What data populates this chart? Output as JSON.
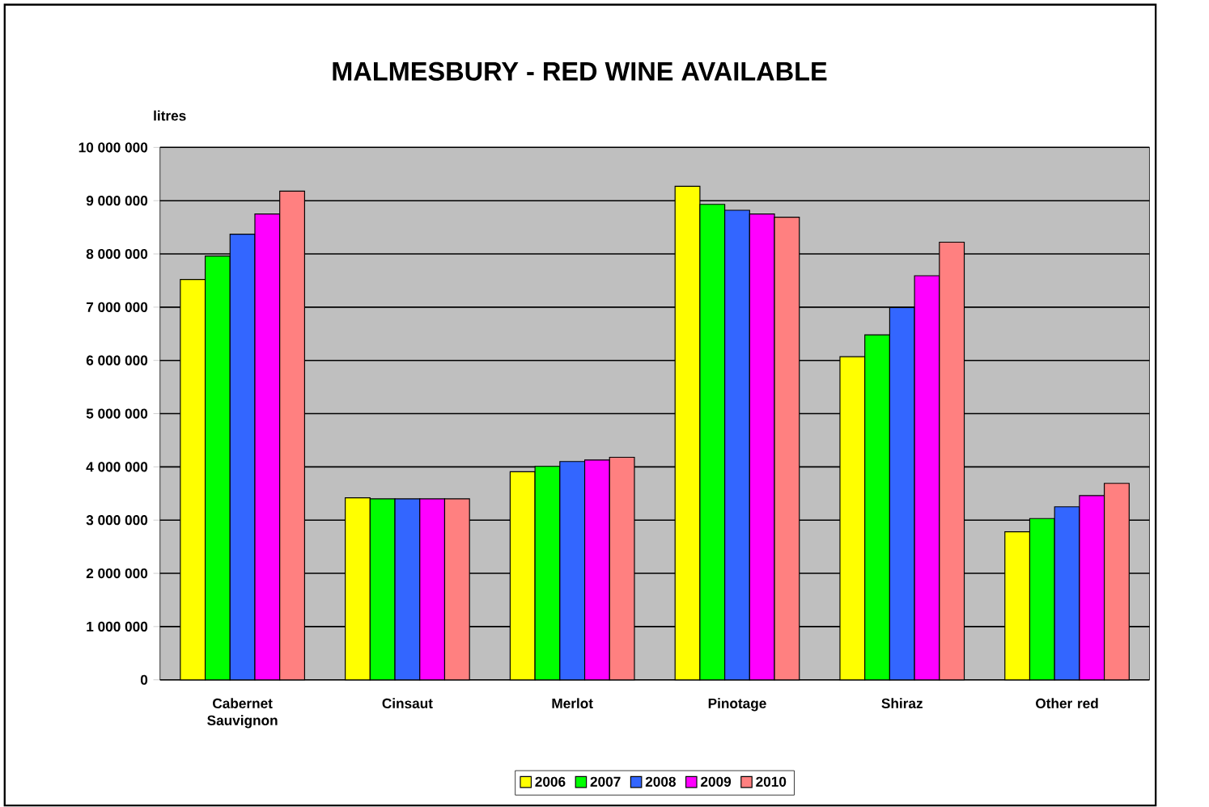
{
  "chart_data": {
    "type": "bar",
    "title": "MALMESBURY - RED WINE AVAILABLE",
    "ylabel": "litres",
    "categories": [
      "Cabernet Sauvignon",
      "Cinsaut",
      "Merlot",
      "Pinotage",
      "Shiraz",
      "Other red"
    ],
    "series": [
      {
        "name": "2006",
        "color": "#ffff00",
        "values": [
          7520000,
          3420000,
          3910000,
          9270000,
          6070000,
          2780000
        ]
      },
      {
        "name": "2007",
        "color": "#00ff00",
        "values": [
          7960000,
          3400000,
          4010000,
          8930000,
          6480000,
          3030000
        ]
      },
      {
        "name": "2008",
        "color": "#3366ff",
        "values": [
          8370000,
          3400000,
          4100000,
          8820000,
          6990000,
          3250000
        ]
      },
      {
        "name": "2009",
        "color": "#ff00ff",
        "values": [
          8750000,
          3400000,
          4130000,
          8750000,
          7590000,
          3460000
        ]
      },
      {
        "name": "2010",
        "color": "#ff8080",
        "values": [
          9180000,
          3400000,
          4180000,
          8690000,
          8220000,
          3690000
        ]
      }
    ],
    "ylim": [
      0,
      10000000
    ],
    "yticks": [
      0,
      {
        "value": 1000000,
        "label": "1 000 000"
      },
      {
        "value": 2000000,
        "label": "2 000 000"
      },
      {
        "value": 3000000,
        "label": "3 000 000"
      },
      {
        "value": 4000000,
        "label": "4 000 000"
      },
      {
        "value": 5000000,
        "label": "5 000 000"
      },
      {
        "value": 6000000,
        "label": "6 000 000"
      },
      {
        "value": 7000000,
        "label": "7 000 000"
      },
      {
        "value": 8000000,
        "label": "8 000 000"
      },
      {
        "value": 9000000,
        "label": "9 000 000"
      },
      {
        "value": 10000000,
        "label": "10 000 000"
      }
    ],
    "grid": "y",
    "legend": "bottom"
  }
}
